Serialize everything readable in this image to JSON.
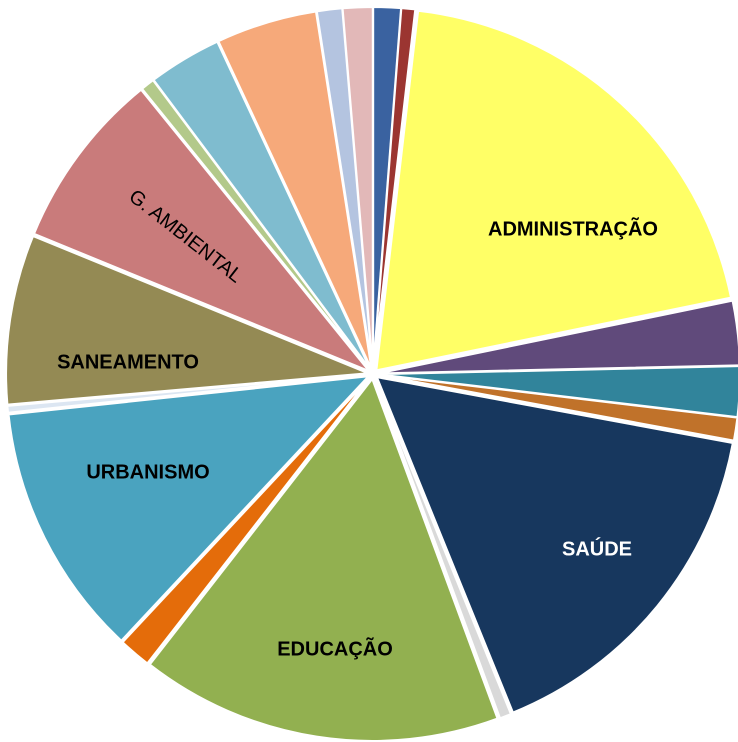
{
  "chart_data": {
    "type": "pie",
    "categories": [
      null,
      null,
      "ADMINISTRAÇÃO",
      null,
      null,
      null,
      "SAÚDE",
      null,
      "EDUCAÇÃO",
      null,
      "URBANISMO",
      null,
      "SANEAMENTO",
      "G. AMBIENTAL",
      null,
      null,
      null,
      null,
      null
    ],
    "values": [
      1.2,
      0.6,
      19.5,
      2.8,
      2.2,
      1.0,
      15.6,
      0.5,
      15.8,
      1.4,
      11.1,
      0.3,
      7.4,
      7.8,
      0.6,
      3.2,
      4.4,
      1.1,
      1.3
    ],
    "colors": [
      "#3a62a0",
      "#9b3531",
      "#ffff66",
      "#604a7b",
      "#31849b",
      "#c0722a",
      "#17375e",
      "#d9d9d9",
      "#92b050",
      "#e46c0a",
      "#4aa3bf",
      "#dce6f2",
      "#948a54",
      "#c97b7b",
      "#b3c98a",
      "#7fbccf",
      "#f6a97a",
      "#b4c4e0",
      "#e2b8b8"
    ]
  }
}
